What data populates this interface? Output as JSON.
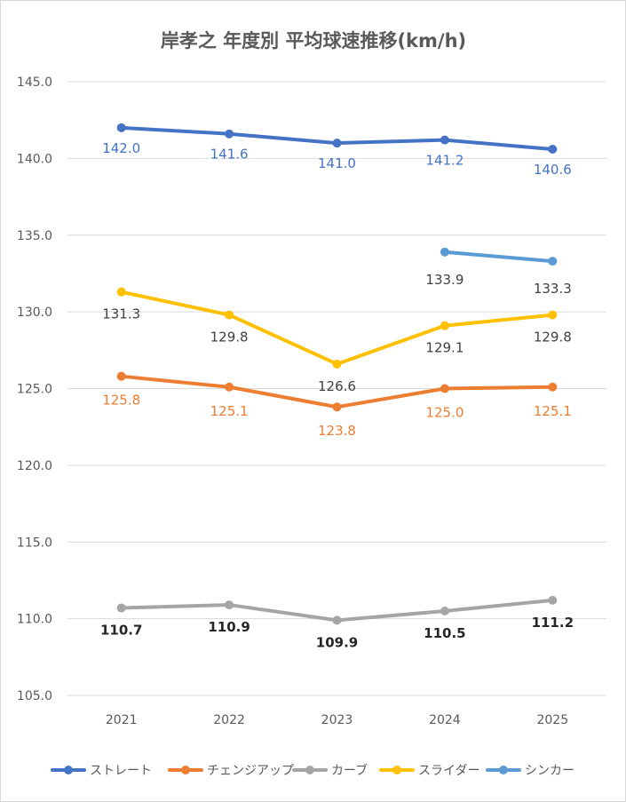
{
  "chart_data": {
    "type": "line",
    "title": "岸孝之 年度別 平均球速推移(km/h)",
    "xlabel": "",
    "ylabel": "",
    "categories": [
      "2021",
      "2022",
      "2023",
      "2024",
      "2025"
    ],
    "ylim": [
      105.0,
      145.0
    ],
    "yticks": [
      "105.0",
      "110.0",
      "115.0",
      "120.0",
      "125.0",
      "130.0",
      "135.0",
      "140.0",
      "145.0"
    ],
    "grid": true,
    "legend_position": "bottom",
    "series": [
      {
        "name": "ストレート",
        "color": "#4472c4",
        "label_color": "#4472c4",
        "values": [
          142.0,
          141.6,
          141.0,
          141.2,
          140.6
        ],
        "labels": [
          "142.0",
          "141.6",
          "141.0",
          "141.2",
          "140.6"
        ]
      },
      {
        "name": "チェンジアップ",
        "color": "#ed7d31",
        "label_color": "#ed7d31",
        "values": [
          125.8,
          125.1,
          123.8,
          125.0,
          125.1
        ],
        "labels": [
          "125.8",
          "125.1",
          "123.8",
          "125.0",
          "125.1"
        ]
      },
      {
        "name": "カーブ",
        "color": "#a5a5a5",
        "label_color": "#262626",
        "values": [
          110.7,
          110.9,
          109.9,
          110.5,
          111.2
        ],
        "labels": [
          "110.7",
          "110.9",
          "109.9",
          "110.5",
          "111.2"
        ]
      },
      {
        "name": "スライダー",
        "color": "#ffc000",
        "label_color": "#404040",
        "values": [
          131.3,
          129.8,
          126.6,
          129.1,
          129.8
        ],
        "labels": [
          "131.3",
          "129.8",
          "126.6",
          "129.1",
          "129.8"
        ]
      },
      {
        "name": "シンカー",
        "color": "#5b9bd5",
        "label_color": "#404040",
        "values": [
          null,
          null,
          null,
          133.9,
          133.3
        ],
        "labels": [
          null,
          null,
          null,
          "133.9",
          "133.3"
        ]
      }
    ]
  }
}
